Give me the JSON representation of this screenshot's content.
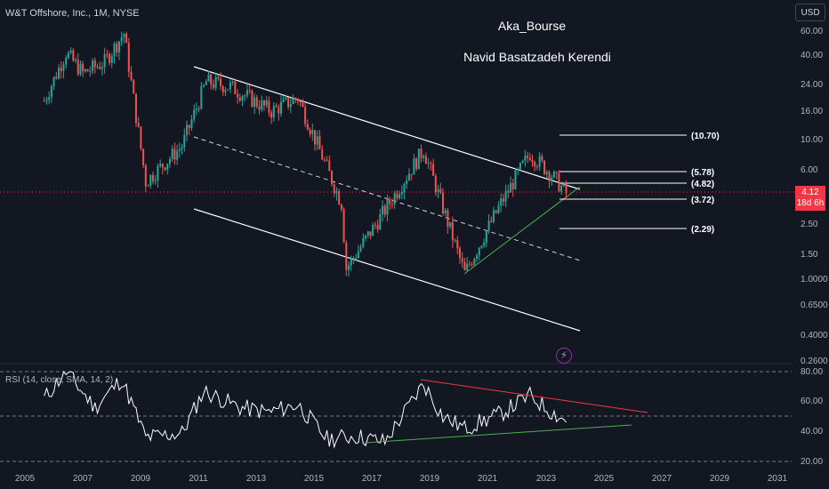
{
  "symbol": {
    "title": "W&T Offshore, Inc., 1M, NYSE"
  },
  "currency_button": {
    "label": "USD"
  },
  "annotations": {
    "line1": "Aka_Bourse",
    "line2": "Navid Basatzadeh Kerendi"
  },
  "price_axis": {
    "labels": [
      "60.00",
      "40.00",
      "24.00",
      "16.00",
      "10.00",
      "6.00",
      "2.50",
      "1.50",
      "1.0000",
      "0.6500",
      "0.4000",
      "0.2600"
    ]
  },
  "last_price": {
    "value": "4.12",
    "countdown": "18d 6h"
  },
  "levels": [
    "(10.70)",
    "(5.78)",
    "(4.82)",
    "(3.72)",
    "(2.29)"
  ],
  "rsi": {
    "title": "RSI (14, close, SMA, 14, 2)",
    "axis_labels": [
      "80.00",
      "60.00",
      "40.00",
      "20.00"
    ]
  },
  "time_axis": {
    "labels": [
      "2005",
      "2007",
      "2009",
      "2011",
      "2013",
      "2015",
      "2017",
      "2019",
      "2021",
      "2023",
      "2025",
      "2027",
      "2029",
      "2031"
    ]
  },
  "colors": {
    "up": "#26a69a",
    "down": "#ef5350",
    "background": "#131722",
    "rsi_line": "#ffffff",
    "upper_trend": "#f23645",
    "lower_trend": "#4caf50"
  },
  "icons": {
    "alert": "lightning-icon"
  },
  "chart_data": {
    "type": "line",
    "scale": "log",
    "series": [
      {
        "x": [
          "2005-09",
          "2006-06",
          "2007-01",
          "2007-10",
          "2008-06",
          "2009-03",
          "2010-06",
          "2011-04",
          "2012-02",
          "2013-07",
          "2014-06",
          "2015-12",
          "2016-02",
          "2017-03",
          "2018-10",
          "2020-03",
          "2020-06",
          "2021-06",
          "2022-06",
          "2023-03",
          "2023-09"
        ],
        "y": [
          19,
          42,
          30,
          36,
          58,
          5,
          9,
          26,
          24,
          16,
          20,
          3.5,
          1.2,
          2.6,
          8.5,
          1.1,
          1.4,
          3.5,
          8.0,
          5.6,
          4.12
        ]
      }
    ],
    "rsi_series": {
      "x": [
        "2005-09",
        "2006-06",
        "2007-06",
        "2008-05",
        "2009-03",
        "2010-06",
        "2011-03",
        "2012-06",
        "2013-06",
        "2014-06",
        "2015-06",
        "2016-06",
        "2017-06",
        "2018-10",
        "2019-06",
        "2020-03",
        "2021-06",
        "2022-06",
        "2023-03",
        "2023-09"
      ],
      "y": [
        62,
        80,
        56,
        75,
        36,
        39,
        67,
        56,
        53,
        58,
        35,
        37,
        33,
        72,
        50,
        42,
        52,
        64,
        53,
        47
      ]
    },
    "ylim": [
      0.26,
      60
    ],
    "rsi_ylim": [
      20,
      80
    ],
    "xlim": [
      "2005",
      "2031"
    ]
  }
}
